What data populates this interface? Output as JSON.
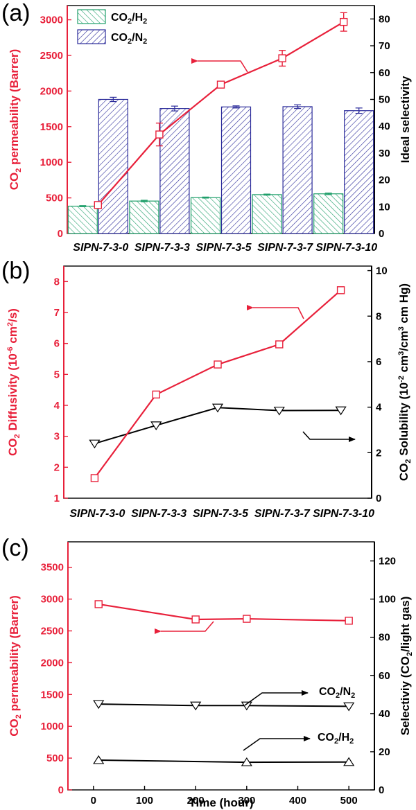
{
  "colors": {
    "red": "#e8203a",
    "navy": "#2a2a9a",
    "green": "#1f9f6a",
    "black": "#000000"
  },
  "chart_data": [
    {
      "panel_label": "(a)",
      "type": "bar",
      "categories": [
        "SIPN-7-3-0",
        "SIPN-7-3-3",
        "SIPN-7-3-5",
        "SIPN-7-3-7",
        "SIPN-7-3-10"
      ],
      "ylabel": "CO2 permeability (Barrer)",
      "ylim": [
        0,
        3200
      ],
      "yticks": [
        0,
        500,
        1000,
        1500,
        2000,
        2500,
        3000
      ],
      "y2label": "Ideal selectivity",
      "y2lim": [
        0,
        85
      ],
      "y2ticks": [
        0,
        10,
        20,
        30,
        40,
        50,
        60,
        70,
        80
      ],
      "legend": {
        "placement": "top-left",
        "entries": [
          "CO2/H2",
          "CO2/N2"
        ]
      },
      "series": [
        {
          "name": "CO2/H2",
          "axis": "right",
          "kind": "bar",
          "values": [
            10.2,
            12.1,
            13.4,
            14.5,
            14.8
          ],
          "errors": [
            0.2,
            0.3,
            0.2,
            0.2,
            0.3
          ]
        },
        {
          "name": "CO2/N2",
          "axis": "right",
          "kind": "bar",
          "values": [
            50.0,
            46.6,
            47.2,
            47.3,
            45.8
          ],
          "errors": [
            0.8,
            0.9,
            0.4,
            0.7,
            1.0
          ]
        },
        {
          "name": "CO2 permeability",
          "axis": "left",
          "kind": "line",
          "values": [
            400,
            1390,
            2090,
            2460,
            2970
          ],
          "errors": [
            25,
            160,
            40,
            110,
            130
          ]
        }
      ]
    },
    {
      "panel_label": "(b)",
      "type": "line",
      "categories": [
        "SIPN-7-3-0",
        "SIPN-7-3-3",
        "SIPN-7-3-5",
        "SIPN-7-3-7",
        "SIPN-7-3-10"
      ],
      "ylabel": "CO2 Diffusivity (10-6 cm2/s)",
      "ylim": [
        1,
        8.5
      ],
      "yticks": [
        1,
        2,
        3,
        4,
        5,
        6,
        7,
        8
      ],
      "y2label": "CO2 Solubility (10-2 cm3/cm3 cm Hg)",
      "y2lim": [
        0,
        10.2
      ],
      "y2ticks": [
        0,
        2,
        4,
        6,
        8,
        10
      ],
      "series": [
        {
          "name": "CO2 Diffusivity",
          "axis": "left",
          "values": [
            1.65,
            4.35,
            5.32,
            5.97,
            7.72
          ]
        },
        {
          "name": "CO2 Solubility",
          "axis": "right",
          "values": [
            2.4,
            3.2,
            3.98,
            3.85,
            3.86
          ]
        }
      ]
    },
    {
      "panel_label": "(c)",
      "type": "line",
      "xlabel": "Time (hour)",
      "xlim": [
        -50,
        550
      ],
      "xticks": [
        0,
        100,
        200,
        300,
        400,
        500
      ],
      "ylabel": "CO2 permeability (Barrer)",
      "ylim": [
        0,
        3900
      ],
      "yticks": [
        0,
        500,
        1000,
        1500,
        2000,
        2500,
        3000,
        3500
      ],
      "y2label": "Selectiviy (CO2/light gas)",
      "y2lim": [
        0,
        130
      ],
      "y2ticks": [
        0,
        20,
        40,
        60,
        80,
        100,
        120
      ],
      "annotations": [
        "CO2/N2",
        "CO2/H2"
      ],
      "series": [
        {
          "name": "CO2 permeability",
          "axis": "left",
          "x": [
            10,
            200,
            300,
            500
          ],
          "values": [
            2920,
            2680,
            2690,
            2660
          ]
        },
        {
          "name": "CO2/N2",
          "axis": "right",
          "x": [
            10,
            200,
            300,
            500
          ],
          "values": [
            45,
            44.2,
            44.2,
            43.8
          ]
        },
        {
          "name": "CO2/H2",
          "axis": "right",
          "x": [
            10,
            300,
            500
          ],
          "values": [
            15.6,
            14.5,
            14.6
          ]
        }
      ]
    }
  ]
}
